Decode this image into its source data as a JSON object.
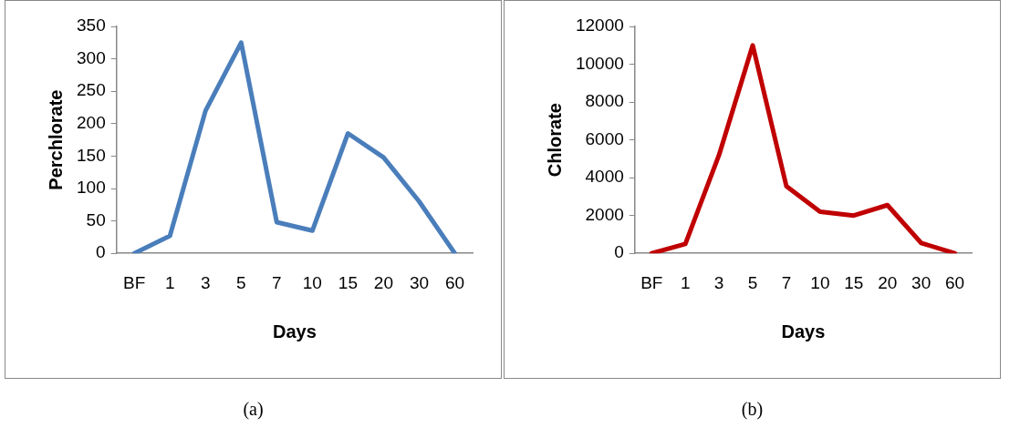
{
  "chart_data": [
    {
      "type": "line",
      "xlabel": "Days",
      "ylabel": "Perchlorate",
      "categories": [
        "BF",
        "1",
        "3",
        "5",
        "7",
        "10",
        "15",
        "20",
        "30",
        "60"
      ],
      "series": [
        {
          "color": "#4a7ebb",
          "values": [
            0,
            27,
            220,
            325,
            48,
            35,
            185,
            148,
            80,
            0
          ]
        }
      ],
      "ylim": [
        0,
        350
      ],
      "yticks": [
        0,
        50,
        100,
        150,
        200,
        250,
        300,
        350
      ],
      "grid": false,
      "legend": false,
      "marker": "none",
      "line_style": "solid",
      "annotations": [
        "(a)"
      ]
    },
    {
      "type": "line",
      "xlabel": "Days",
      "ylabel": "Chlorate",
      "categories": [
        "BF",
        "1",
        "3",
        "5",
        "7",
        "10",
        "15",
        "20",
        "30",
        "60"
      ],
      "series": [
        {
          "color": "#c00000",
          "values": [
            0,
            500,
            5200,
            11000,
            3550,
            2200,
            2000,
            2550,
            550,
            0
          ]
        }
      ],
      "ylim": [
        0,
        12000
      ],
      "yticks": [
        0,
        2000,
        4000,
        6000,
        8000,
        10000,
        12000
      ],
      "grid": false,
      "legend": false,
      "marker": "none",
      "line_style": "solid",
      "annotations": [
        "(b)"
      ]
    }
  ]
}
